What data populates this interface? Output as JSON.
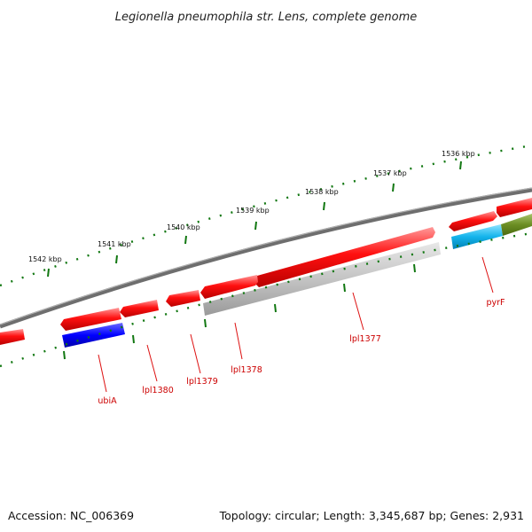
{
  "title": "Legionella pneumophila str. Lens, complete genome",
  "accession": "Accession: NC_006369",
  "topology": "Topology: circular; Length: 3,345,687 bp; Genes: 2,931",
  "scale_labels": [
    "1536 kbp",
    "1537 kbp",
    "1538 kbp",
    "1539 kbp",
    "1540 kbp",
    "1541 kbp",
    "1542 kbp"
  ],
  "gene_labels": [
    "pyrF",
    "lpl1377",
    "lpl1378",
    "lpl1379",
    "lpl1380",
    "ubiA"
  ],
  "colors": {
    "backbone": "#808080",
    "forward_gene": "#ff0000",
    "reverse_gene": "#ff0000",
    "ubiA_track": "#0000ff",
    "pseudo_track": "#b8b8b8",
    "cyan_track": "#00b8f0",
    "olive_track": "#6b8e23",
    "scale_ticks": "#117711",
    "label_text": "#cc0000"
  }
}
